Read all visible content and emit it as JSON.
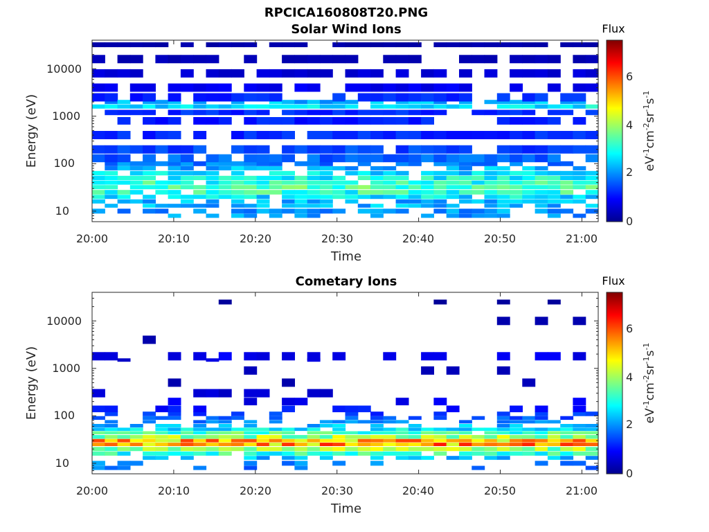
{
  "figure": {
    "filename": "RPCICA160808T20.PNG"
  },
  "colors": {
    "colormap": "jet",
    "background": "#ffffff"
  },
  "chart_data": [
    {
      "type": "heatmap",
      "title": "Solar Wind Ions",
      "xlabel": "Time",
      "ylabel": "Energy (eV)",
      "yscale": "log",
      "ylim": [
        6,
        40000
      ],
      "xlim": [
        "20:00",
        "21:02"
      ],
      "xticks": [
        "20:00",
        "20:10",
        "20:20",
        "20:30",
        "20:40",
        "20:50",
        "21:00"
      ],
      "yticks": [
        "10",
        "100",
        "1000",
        "10000"
      ],
      "colorbar": {
        "title": "Flux",
        "label": "eV-1cm-2sr-1s-1",
        "range": [
          0,
          7.3
        ],
        "ticks": [
          "0",
          "2",
          "4",
          "6"
        ]
      },
      "profile": {
        "energies_eV": [
          8,
          10,
          13,
          16,
          20,
          25,
          32,
          40,
          50,
          63,
          80,
          100,
          130,
          200,
          400,
          800,
          1200,
          1600,
          2000,
          2500,
          4000,
          8000,
          16000,
          32000
        ],
        "typical_flux": [
          2.0,
          2.0,
          2.2,
          2.2,
          2.6,
          3.0,
          3.2,
          3.0,
          2.8,
          2.5,
          2.2,
          1.8,
          1.6,
          1.4,
          1.2,
          1.1,
          1.2,
          2.6,
          2.2,
          1.2,
          0.8,
          0.6,
          0.4,
          0.3
        ],
        "occupancy": [
          0.45,
          0.65,
          0.6,
          0.75,
          0.9,
          0.95,
          0.95,
          0.95,
          0.9,
          0.8,
          0.7,
          0.75,
          0.8,
          0.85,
          0.8,
          0.8,
          0.8,
          0.85,
          0.8,
          0.7,
          0.7,
          0.7,
          0.75,
          0.8
        ]
      }
    },
    {
      "type": "heatmap",
      "title": "Cometary Ions",
      "xlabel": "Time",
      "ylabel": "Energy (eV)",
      "yscale": "log",
      "ylim": [
        6,
        40000
      ],
      "xlim": [
        "20:00",
        "21:02"
      ],
      "xticks": [
        "20:00",
        "20:10",
        "20:20",
        "20:30",
        "20:40",
        "20:50",
        "21:00"
      ],
      "yticks": [
        "10",
        "100",
        "1000",
        "10000"
      ],
      "colorbar": {
        "title": "Flux",
        "label": "eV-1cm-2sr-1s-1",
        "range": [
          0,
          7.3
        ],
        "ticks": [
          "0",
          "2",
          "4",
          "6"
        ]
      },
      "profile": {
        "energies_eV": [
          8,
          10,
          13,
          16,
          20,
          25,
          30,
          36,
          44,
          52,
          62,
          75,
          90,
          110,
          140,
          200,
          300,
          500,
          900,
          1500,
          1800,
          4000,
          10000,
          25000
        ],
        "typical_flux": [
          1.8,
          1.8,
          2.2,
          3.0,
          3.8,
          5.2,
          5.0,
          3.8,
          3.2,
          2.6,
          2.2,
          1.8,
          1.5,
          1.3,
          1.0,
          0.8,
          0.6,
          0.4,
          0.4,
          0.6,
          0.8,
          0.4,
          0.3,
          0.2
        ],
        "occupancy": [
          0.2,
          0.35,
          0.55,
          0.85,
          1.0,
          1.0,
          1.0,
          1.0,
          0.95,
          0.85,
          0.6,
          0.5,
          0.4,
          0.35,
          0.3,
          0.2,
          0.12,
          0.1,
          0.08,
          0.1,
          0.5,
          0.05,
          0.06,
          0.03
        ]
      }
    }
  ]
}
